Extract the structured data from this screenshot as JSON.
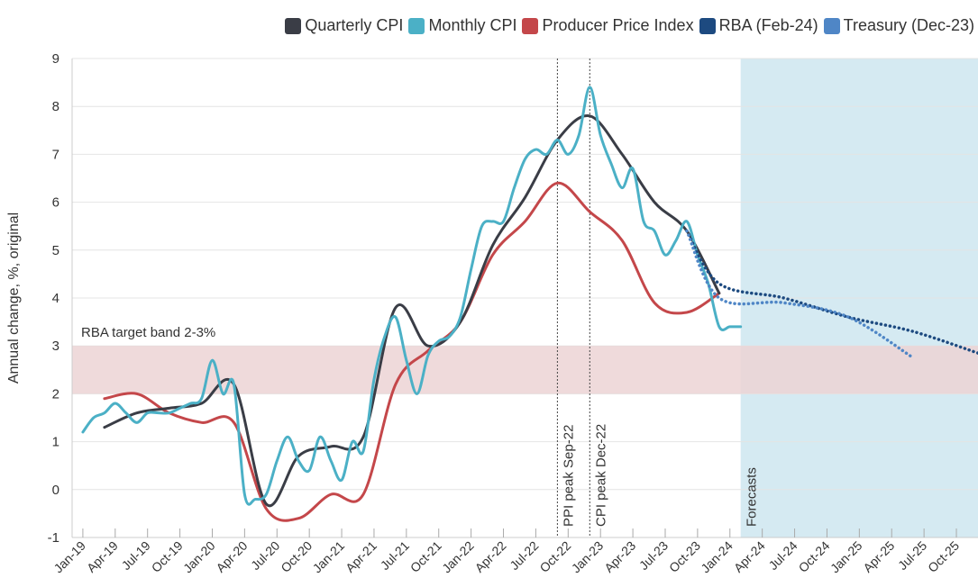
{
  "chart_data": {
    "type": "line",
    "y_label": "Annual change, %, original",
    "xlim": [
      2018.917,
      2025.917
    ],
    "ylim": [
      -1,
      9
    ],
    "yticks": [
      -1,
      0,
      1,
      2,
      3,
      4,
      5,
      6,
      7,
      8,
      9
    ],
    "xticks": [
      {
        "value": 2019,
        "label": "Jan-19"
      },
      {
        "value": 2019.25,
        "label": "Apr-19"
      },
      {
        "value": 2019.5,
        "label": "Jul-19"
      },
      {
        "value": 2019.75,
        "label": "Oct-19"
      },
      {
        "value": 2020,
        "label": "Jan-20"
      },
      {
        "value": 2020.25,
        "label": "Apr-20"
      },
      {
        "value": 2020.5,
        "label": "Jul-20"
      },
      {
        "value": 2020.75,
        "label": "Oct-20"
      },
      {
        "value": 2021,
        "label": "Jan-21"
      },
      {
        "value": 2021.25,
        "label": "Apr-21"
      },
      {
        "value": 2021.5,
        "label": "Jul-21"
      },
      {
        "value": 2021.75,
        "label": "Oct-21"
      },
      {
        "value": 2022,
        "label": "Jan-22"
      },
      {
        "value": 2022.25,
        "label": "Apr-22"
      },
      {
        "value": 2022.5,
        "label": "Jul-22"
      },
      {
        "value": 2022.75,
        "label": "Oct-22"
      },
      {
        "value": 2023,
        "label": "Jan-23"
      },
      {
        "value": 2023.25,
        "label": "Apr-23"
      },
      {
        "value": 2023.5,
        "label": "Jul-23"
      },
      {
        "value": 2023.75,
        "label": "Oct-23"
      },
      {
        "value": 2024,
        "label": "Jan-24"
      },
      {
        "value": 2024.25,
        "label": "Apr-24"
      },
      {
        "value": 2024.5,
        "label": "Jul-24"
      },
      {
        "value": 2024.75,
        "label": "Oct-24"
      },
      {
        "value": 2025,
        "label": "Jan-25"
      },
      {
        "value": 2025.25,
        "label": "Apr-25"
      },
      {
        "value": 2025.5,
        "label": "Jul-25"
      },
      {
        "value": 2025.75,
        "label": "Oct-25"
      }
    ],
    "grid": true,
    "legend": "top-right",
    "target_band": {
      "label": "RBA target band 2-3%",
      "range": [
        2,
        3
      ],
      "color": "#ecd3d5"
    },
    "forecast": {
      "label": "Forecasts",
      "start": 2024.083,
      "color": "#d5eaf2"
    },
    "annotations": [
      {
        "text": "PPI peak Sep-22",
        "x": 2022.667
      },
      {
        "text": "CPI peak Dec-22",
        "x": 2022.917
      }
    ],
    "series": [
      {
        "name": "Quarterly CPI",
        "color": "#3a3d46",
        "x": [
          2019.167,
          2019.417,
          2019.667,
          2019.917,
          2020.167,
          2020.417,
          2020.667,
          2020.917,
          2021.167,
          2021.417,
          2021.667,
          2021.917,
          2022.167,
          2022.417,
          2022.667,
          2022.917,
          2023.167,
          2023.417,
          2023.667,
          2023.917
        ],
        "values": [
          1.3,
          1.6,
          1.7,
          1.8,
          2.2,
          -0.3,
          0.7,
          0.9,
          1.1,
          3.8,
          3.0,
          3.5,
          5.1,
          6.1,
          7.3,
          7.8,
          7.0,
          6.0,
          5.4,
          4.1
        ]
      },
      {
        "name": "Monthly CPI",
        "color": "#4bb0c6",
        "x": [
          2019,
          2019.083,
          2019.167,
          2019.25,
          2019.333,
          2019.417,
          2019.5,
          2019.583,
          2019.667,
          2019.75,
          2019.833,
          2019.917,
          2020,
          2020.083,
          2020.167,
          2020.25,
          2020.333,
          2020.417,
          2020.5,
          2020.583,
          2020.667,
          2020.75,
          2020.833,
          2020.917,
          2021,
          2021.083,
          2021.167,
          2021.25,
          2021.333,
          2021.417,
          2021.5,
          2021.583,
          2021.667,
          2021.75,
          2021.833,
          2021.917,
          2022,
          2022.083,
          2022.167,
          2022.25,
          2022.333,
          2022.417,
          2022.5,
          2022.583,
          2022.667,
          2022.75,
          2022.833,
          2022.917,
          2023,
          2023.083,
          2023.167,
          2023.25,
          2023.333,
          2023.417,
          2023.5,
          2023.583,
          2023.667,
          2023.75,
          2023.833,
          2023.917,
          2024,
          2024.083
        ],
        "values": [
          1.2,
          1.5,
          1.6,
          1.8,
          1.6,
          1.4,
          1.6,
          1.6,
          1.6,
          1.7,
          1.8,
          1.9,
          2.7,
          2.0,
          2.2,
          -0.1,
          -0.2,
          -0.1,
          0.6,
          1.1,
          0.6,
          0.4,
          1.1,
          0.6,
          0.2,
          1.0,
          0.8,
          2.3,
          3.2,
          3.6,
          2.7,
          2.0,
          2.8,
          3.1,
          3.2,
          3.6,
          4.6,
          5.5,
          5.6,
          5.6,
          6.3,
          6.9,
          7.1,
          7.0,
          7.3,
          7.0,
          7.4,
          8.4,
          7.4,
          6.8,
          6.3,
          6.7,
          5.6,
          5.4,
          4.9,
          5.2,
          5.6,
          4.9,
          4.3,
          3.4,
          3.4,
          3.4
        ]
      },
      {
        "name": "Producer Price Index",
        "color": "#c4474a",
        "x": [
          2019.167,
          2019.417,
          2019.667,
          2019.917,
          2020.167,
          2020.417,
          2020.667,
          2020.917,
          2021.167,
          2021.417,
          2021.667,
          2021.917,
          2022.167,
          2022.417,
          2022.667,
          2022.917,
          2023.167,
          2023.417,
          2023.667,
          2023.917
        ],
        "values": [
          1.9,
          2.0,
          1.6,
          1.4,
          1.4,
          -0.4,
          -0.6,
          -0.1,
          -0.1,
          2.2,
          2.9,
          3.5,
          4.9,
          5.6,
          6.4,
          5.8,
          5.2,
          3.9,
          3.7,
          4.1
        ]
      },
      {
        "name": "RBA (Feb-24)",
        "color": "#1d4a80",
        "dashed": true,
        "x": [
          2023.667,
          2023.917,
          2024.417,
          2024.917,
          2025.417,
          2025.917
        ],
        "values": [
          5.4,
          4.3,
          4.0,
          3.6,
          3.3,
          2.85
        ]
      },
      {
        "name": "Treasury (Dec-23)",
        "color": "#4f86c6",
        "dashed": true,
        "x": [
          2023.667,
          2023.917,
          2024.417,
          2024.917,
          2025.417
        ],
        "values": [
          5.4,
          4.0,
          3.9,
          3.6,
          2.75
        ]
      }
    ]
  }
}
